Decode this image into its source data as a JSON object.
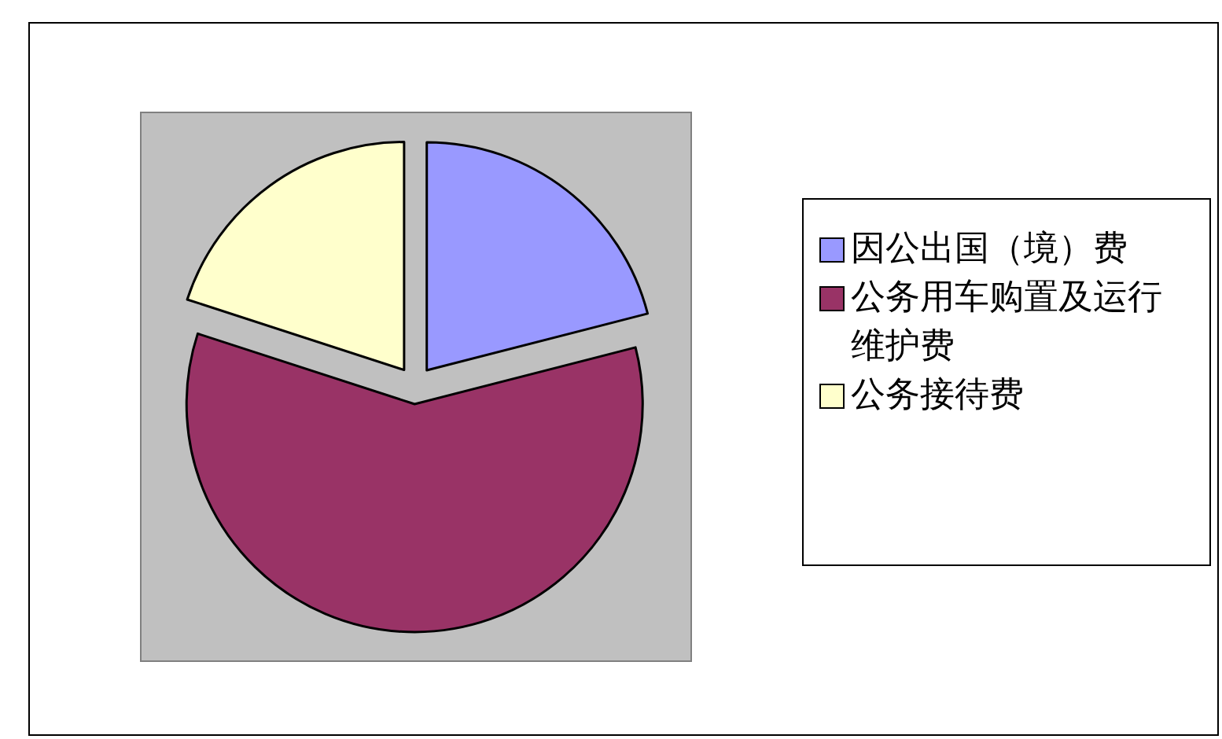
{
  "chart_data": {
    "type": "pie",
    "categories": [
      "因公出国（境）费",
      "公务用车购置及运行维护费",
      "公务接待费"
    ],
    "values": [
      21,
      59,
      20
    ],
    "colors": [
      "#9999ff",
      "#993366",
      "#ffffcc"
    ],
    "legend": "right"
  }
}
